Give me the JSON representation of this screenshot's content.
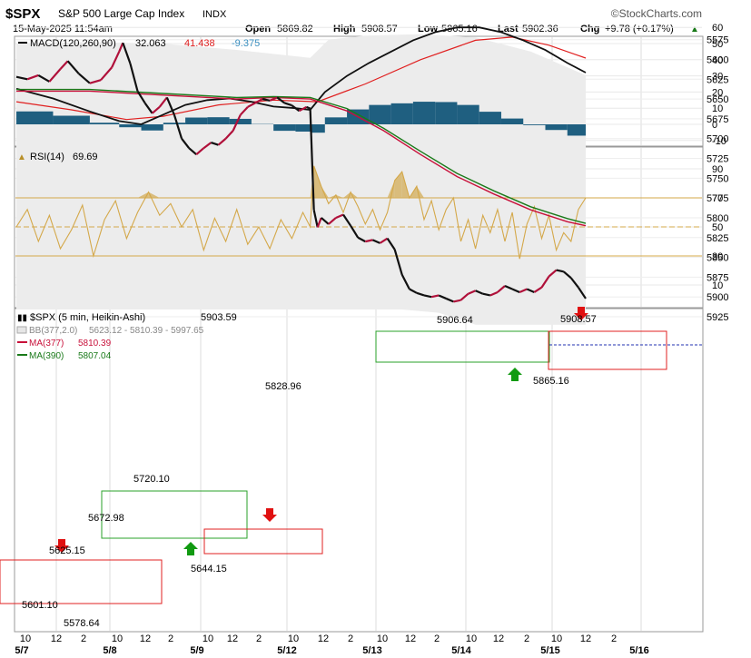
{
  "header": {
    "symbol": "$SPX",
    "name": "S&P 500 Large Cap Index",
    "exchange": "INDX",
    "watermark": "©StockCharts.com",
    "datetime": "15-May-2025 11:54am",
    "open_label": "Open",
    "open": "5869.82",
    "high_label": "High",
    "high": "5908.57",
    "low_label": "Low",
    "low": "5865.16",
    "last_label": "Last",
    "last": "5902.36",
    "chg_label": "Chg",
    "chg": "+9.78 (+0.17%)",
    "chg_arrow": "▲",
    "chg_color": "#1a7a1a"
  },
  "macd": {
    "label": "MACD(120,260,90)",
    "v1": "32.063",
    "v2": "41.438",
    "v3": "-9.375",
    "c1": "#000000",
    "c2": "#e02020",
    "c3": "#3a8fc0",
    "hist_color": "#1f5f80",
    "ticks": [
      "60",
      "50",
      "40",
      "30",
      "20",
      "10",
      "0",
      "-10"
    ]
  },
  "rsi": {
    "label": "RSI(14)",
    "value": "69.69",
    "line_color": "#d4a84a",
    "ticks": [
      "90",
      "70",
      "50",
      "30",
      "10"
    ]
  },
  "price": {
    "label": "$SPX (5 min, Heikin-Ashi)",
    "value": "5903.59",
    "bb_label": "BB(377,2.0)",
    "bb_value": "5623.12 - 5810.39 - 5997.65",
    "ma1_label": "MA(377)",
    "ma1_value": "5810.39",
    "ma1_color": "#c8103a",
    "ma2_label": "MA(390)",
    "ma2_value": "5807.04",
    "ma2_color": "#1a7a1a",
    "ticks": [
      "5925",
      "5900",
      "5875",
      "5850",
      "5825",
      "5800",
      "5775",
      "5750",
      "5725",
      "5700",
      "5675",
      "5650",
      "5625",
      "5600",
      "5575"
    ],
    "annotations": [
      "5625.15",
      "5601.10",
      "5578.64",
      "5672.98",
      "5720.10",
      "5644.15",
      "5828.96",
      "5906.64",
      "5865.16",
      "5908.57"
    ]
  },
  "chart_data": {
    "type": "line",
    "title": "$SPX S&P 500 Large Cap Index INDX",
    "x_tick_labels": [
      "10",
      "12",
      "2",
      "10",
      "12",
      "2",
      "10",
      "12",
      "2",
      "10",
      "12",
      "2",
      "10",
      "12",
      "2",
      "10",
      "12",
      "2",
      "10",
      "12",
      "2"
    ],
    "date_labels": [
      "5/7",
      "5/8",
      "5/9",
      "5/12",
      "5/13",
      "5/14",
      "5/15",
      "5/16"
    ],
    "price_ylim": [
      5565,
      5935
    ],
    "price_series": [
      {
        "x": 0,
        "y": 5622
      },
      {
        "x": 3,
        "y": 5625
      },
      {
        "x": 6,
        "y": 5620
      },
      {
        "x": 9,
        "y": 5628
      },
      {
        "x": 12,
        "y": 5612
      },
      {
        "x": 14,
        "y": 5602
      },
      {
        "x": 17,
        "y": 5618
      },
      {
        "x": 20,
        "y": 5630
      },
      {
        "x": 23,
        "y": 5626
      },
      {
        "x": 26,
        "y": 5610
      },
      {
        "x": 28,
        "y": 5590
      },
      {
        "x": 29,
        "y": 5579
      },
      {
        "x": 31,
        "y": 5605
      },
      {
        "x": 33,
        "y": 5640
      },
      {
        "x": 35,
        "y": 5655
      },
      {
        "x": 37,
        "y": 5668
      },
      {
        "x": 39,
        "y": 5660
      },
      {
        "x": 41,
        "y": 5648
      },
      {
        "x": 43,
        "y": 5670
      },
      {
        "x": 45,
        "y": 5700
      },
      {
        "x": 47,
        "y": 5712
      },
      {
        "x": 49,
        "y": 5720
      },
      {
        "x": 51,
        "y": 5712
      },
      {
        "x": 53,
        "y": 5705
      },
      {
        "x": 55,
        "y": 5708
      },
      {
        "x": 57,
        "y": 5700
      },
      {
        "x": 59,
        "y": 5690
      },
      {
        "x": 61,
        "y": 5670
      },
      {
        "x": 63,
        "y": 5660
      },
      {
        "x": 65,
        "y": 5655
      },
      {
        "x": 67,
        "y": 5650
      },
      {
        "x": 69,
        "y": 5652
      },
      {
        "x": 71,
        "y": 5648
      },
      {
        "x": 73,
        "y": 5655
      },
      {
        "x": 75,
        "y": 5658
      },
      {
        "x": 77,
        "y": 5665
      },
      {
        "x": 79,
        "y": 5660
      },
      {
        "x": 80,
        "y": 5662
      },
      {
        "x": 81,
        "y": 5790
      },
      {
        "x": 82,
        "y": 5812
      },
      {
        "x": 83,
        "y": 5800
      },
      {
        "x": 85,
        "y": 5808
      },
      {
        "x": 87,
        "y": 5800
      },
      {
        "x": 89,
        "y": 5796
      },
      {
        "x": 91,
        "y": 5810
      },
      {
        "x": 93,
        "y": 5825
      },
      {
        "x": 95,
        "y": 5830
      },
      {
        "x": 97,
        "y": 5828
      },
      {
        "x": 99,
        "y": 5832
      },
      {
        "x": 101,
        "y": 5826
      },
      {
        "x": 103,
        "y": 5840
      },
      {
        "x": 105,
        "y": 5872
      },
      {
        "x": 107,
        "y": 5890
      },
      {
        "x": 109,
        "y": 5895
      },
      {
        "x": 111,
        "y": 5898
      },
      {
        "x": 113,
        "y": 5900
      },
      {
        "x": 115,
        "y": 5898
      },
      {
        "x": 117,
        "y": 5902
      },
      {
        "x": 119,
        "y": 5906
      },
      {
        "x": 121,
        "y": 5904
      },
      {
        "x": 123,
        "y": 5896
      },
      {
        "x": 125,
        "y": 5892
      },
      {
        "x": 127,
        "y": 5896
      },
      {
        "x": 129,
        "y": 5898
      },
      {
        "x": 131,
        "y": 5894
      },
      {
        "x": 133,
        "y": 5886
      },
      {
        "x": 135,
        "y": 5890
      },
      {
        "x": 137,
        "y": 5894
      },
      {
        "x": 139,
        "y": 5890
      },
      {
        "x": 141,
        "y": 5894
      },
      {
        "x": 143,
        "y": 5888
      },
      {
        "x": 145,
        "y": 5874
      },
      {
        "x": 147,
        "y": 5866
      },
      {
        "x": 149,
        "y": 5868
      },
      {
        "x": 151,
        "y": 5876
      },
      {
        "x": 153,
        "y": 5888
      },
      {
        "x": 155,
        "y": 5902
      }
    ],
    "ma1_series": [
      {
        "x": 0,
        "y": 5640
      },
      {
        "x": 20,
        "y": 5640
      },
      {
        "x": 40,
        "y": 5645
      },
      {
        "x": 60,
        "y": 5650
      },
      {
        "x": 70,
        "y": 5648
      },
      {
        "x": 80,
        "y": 5650
      },
      {
        "x": 90,
        "y": 5665
      },
      {
        "x": 100,
        "y": 5690
      },
      {
        "x": 110,
        "y": 5720
      },
      {
        "x": 120,
        "y": 5748
      },
      {
        "x": 130,
        "y": 5770
      },
      {
        "x": 140,
        "y": 5790
      },
      {
        "x": 150,
        "y": 5805
      },
      {
        "x": 155,
        "y": 5810
      }
    ],
    "ma2_series": [
      {
        "x": 0,
        "y": 5638
      },
      {
        "x": 20,
        "y": 5638
      },
      {
        "x": 40,
        "y": 5643
      },
      {
        "x": 60,
        "y": 5648
      },
      {
        "x": 70,
        "y": 5647
      },
      {
        "x": 80,
        "y": 5648
      },
      {
        "x": 90,
        "y": 5662
      },
      {
        "x": 100,
        "y": 5687
      },
      {
        "x": 110,
        "y": 5716
      },
      {
        "x": 120,
        "y": 5744
      },
      {
        "x": 130,
        "y": 5766
      },
      {
        "x": 140,
        "y": 5786
      },
      {
        "x": 150,
        "y": 5801
      },
      {
        "x": 155,
        "y": 5807
      }
    ],
    "bb_upper": [
      {
        "x": 0,
        "y": 5720
      },
      {
        "x": 20,
        "y": 5716
      },
      {
        "x": 40,
        "y": 5712
      },
      {
        "x": 60,
        "y": 5712
      },
      {
        "x": 80,
        "y": 5705
      },
      {
        "x": 85,
        "y": 5740
      },
      {
        "x": 95,
        "y": 5805
      },
      {
        "x": 105,
        "y": 5865
      },
      {
        "x": 115,
        "y": 5920
      },
      {
        "x": 125,
        "y": 5935
      },
      {
        "x": 135,
        "y": 5935
      },
      {
        "x": 145,
        "y": 5935
      },
      {
        "x": 155,
        "y": 5935
      }
    ],
    "bb_lower": [
      {
        "x": 0,
        "y": 5580
      },
      {
        "x": 20,
        "y": 5578
      },
      {
        "x": 40,
        "y": 5580
      },
      {
        "x": 60,
        "y": 5588
      },
      {
        "x": 80,
        "y": 5598
      },
      {
        "x": 85,
        "y": 5575
      },
      {
        "x": 95,
        "y": 5570
      },
      {
        "x": 110,
        "y": 5568
      },
      {
        "x": 125,
        "y": 5572
      },
      {
        "x": 140,
        "y": 5590
      },
      {
        "x": 155,
        "y": 5620
      }
    ],
    "macd_ylim": [
      -15,
      65
    ],
    "macd_series": [
      {
        "x": 0,
        "y": 22
      },
      {
        "x": 10,
        "y": 16
      },
      {
        "x": 20,
        "y": 8
      },
      {
        "x": 28,
        "y": 2
      },
      {
        "x": 34,
        "y": 0
      },
      {
        "x": 40,
        "y": 6
      },
      {
        "x": 46,
        "y": 12
      },
      {
        "x": 52,
        "y": 15
      },
      {
        "x": 58,
        "y": 16
      },
      {
        "x": 64,
        "y": 14
      },
      {
        "x": 70,
        "y": 11
      },
      {
        "x": 76,
        "y": 10
      },
      {
        "x": 80,
        "y": 9
      },
      {
        "x": 84,
        "y": 20
      },
      {
        "x": 90,
        "y": 30
      },
      {
        "x": 96,
        "y": 38
      },
      {
        "x": 102,
        "y": 45
      },
      {
        "x": 108,
        "y": 52
      },
      {
        "x": 114,
        "y": 57
      },
      {
        "x": 120,
        "y": 60
      },
      {
        "x": 126,
        "y": 60
      },
      {
        "x": 132,
        "y": 57
      },
      {
        "x": 138,
        "y": 52
      },
      {
        "x": 144,
        "y": 46
      },
      {
        "x": 150,
        "y": 38
      },
      {
        "x": 155,
        "y": 32
      }
    ],
    "signal_series": [
      {
        "x": 0,
        "y": 14
      },
      {
        "x": 15,
        "y": 9
      },
      {
        "x": 30,
        "y": 3
      },
      {
        "x": 40,
        "y": 5
      },
      {
        "x": 55,
        "y": 12
      },
      {
        "x": 70,
        "y": 15
      },
      {
        "x": 82,
        "y": 14
      },
      {
        "x": 95,
        "y": 25
      },
      {
        "x": 110,
        "y": 40
      },
      {
        "x": 125,
        "y": 52
      },
      {
        "x": 135,
        "y": 54
      },
      {
        "x": 145,
        "y": 49
      },
      {
        "x": 155,
        "y": 41
      }
    ],
    "rsi_ylim": [
      0,
      100
    ],
    "rsi_series": [
      {
        "x": 0,
        "y": 50
      },
      {
        "x": 3,
        "y": 62
      },
      {
        "x": 6,
        "y": 40
      },
      {
        "x": 9,
        "y": 58
      },
      {
        "x": 12,
        "y": 35
      },
      {
        "x": 15,
        "y": 48
      },
      {
        "x": 18,
        "y": 65
      },
      {
        "x": 21,
        "y": 30
      },
      {
        "x": 24,
        "y": 55
      },
      {
        "x": 27,
        "y": 68
      },
      {
        "x": 30,
        "y": 42
      },
      {
        "x": 33,
        "y": 60
      },
      {
        "x": 36,
        "y": 74
      },
      {
        "x": 39,
        "y": 58
      },
      {
        "x": 42,
        "y": 66
      },
      {
        "x": 45,
        "y": 50
      },
      {
        "x": 48,
        "y": 62
      },
      {
        "x": 51,
        "y": 34
      },
      {
        "x": 54,
        "y": 56
      },
      {
        "x": 57,
        "y": 40
      },
      {
        "x": 60,
        "y": 62
      },
      {
        "x": 63,
        "y": 38
      },
      {
        "x": 66,
        "y": 50
      },
      {
        "x": 69,
        "y": 35
      },
      {
        "x": 72,
        "y": 55
      },
      {
        "x": 75,
        "y": 42
      },
      {
        "x": 78,
        "y": 60
      },
      {
        "x": 80,
        "y": 50
      },
      {
        "x": 81,
        "y": 92
      },
      {
        "x": 83,
        "y": 78
      },
      {
        "x": 85,
        "y": 66
      },
      {
        "x": 87,
        "y": 72
      },
      {
        "x": 89,
        "y": 60
      },
      {
        "x": 91,
        "y": 74
      },
      {
        "x": 93,
        "y": 64
      },
      {
        "x": 95,
        "y": 52
      },
      {
        "x": 97,
        "y": 62
      },
      {
        "x": 99,
        "y": 48
      },
      {
        "x": 101,
        "y": 60
      },
      {
        "x": 103,
        "y": 82
      },
      {
        "x": 105,
        "y": 88
      },
      {
        "x": 107,
        "y": 70
      },
      {
        "x": 109,
        "y": 78
      },
      {
        "x": 111,
        "y": 55
      },
      {
        "x": 113,
        "y": 68
      },
      {
        "x": 115,
        "y": 48
      },
      {
        "x": 117,
        "y": 62
      },
      {
        "x": 119,
        "y": 70
      },
      {
        "x": 121,
        "y": 40
      },
      {
        "x": 123,
        "y": 55
      },
      {
        "x": 125,
        "y": 35
      },
      {
        "x": 127,
        "y": 58
      },
      {
        "x": 129,
        "y": 46
      },
      {
        "x": 131,
        "y": 62
      },
      {
        "x": 133,
        "y": 40
      },
      {
        "x": 135,
        "y": 60
      },
      {
        "x": 137,
        "y": 28
      },
      {
        "x": 139,
        "y": 52
      },
      {
        "x": 141,
        "y": 64
      },
      {
        "x": 143,
        "y": 42
      },
      {
        "x": 145,
        "y": 58
      },
      {
        "x": 147,
        "y": 34
      },
      {
        "x": 149,
        "y": 46
      },
      {
        "x": 151,
        "y": 40
      },
      {
        "x": 153,
        "y": 62
      },
      {
        "x": 155,
        "y": 70
      }
    ]
  }
}
